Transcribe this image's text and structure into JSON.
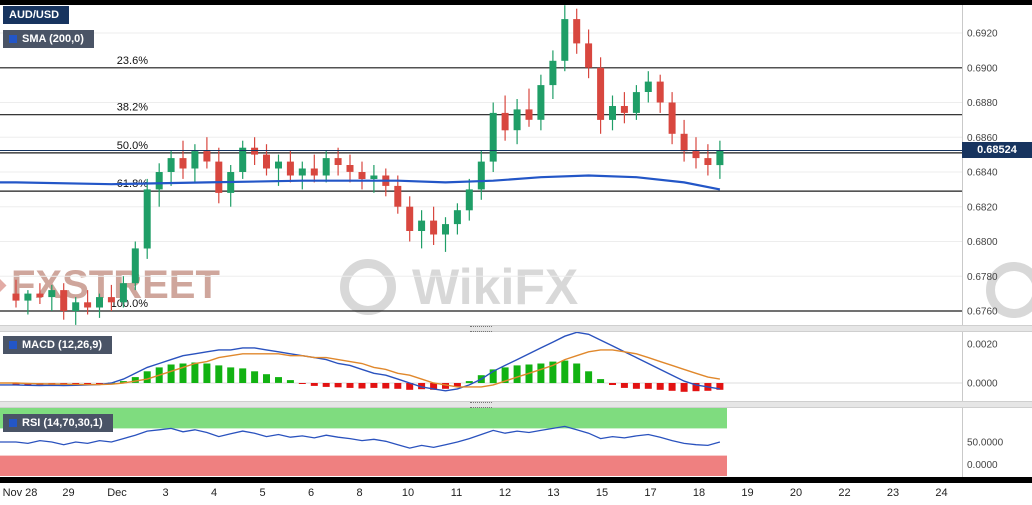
{
  "panels": {
    "price": {
      "symbol_label": "AUD/USD",
      "sma_label": "SMA (200,0)"
    },
    "macd": {
      "label": "MACD (12,26,9)",
      "axis": [
        "0.0020",
        "0.0000"
      ]
    },
    "rsi": {
      "label": "RSI (14,70,30,1)",
      "axis": [
        "50.0000",
        "0.0000"
      ]
    }
  },
  "price_axis": {
    "labels": [
      "0.6920",
      "0.6900",
      "0.6880",
      "0.6860",
      "0.6840",
      "0.6820",
      "0.6800",
      "0.6780",
      "0.6760"
    ],
    "current_price": "0.68524"
  },
  "x_axis": {
    "labels": [
      "Nov 28",
      "29",
      "Dec",
      "3",
      "4",
      "5",
      "6",
      "8",
      "10",
      "11",
      "12",
      "13",
      "15",
      "17",
      "18",
      "19",
      "20",
      "22",
      "23",
      "24"
    ]
  },
  "watermarks": {
    "left": "FXSTREET",
    "center": "WikiFX"
  },
  "colors": {
    "up": "#1f9e67",
    "down": "#d8473f",
    "sma": "#2356c7",
    "macd": "#2a52be",
    "signal": "#e0882c",
    "hist_up": "#12b212",
    "hist_down": "#e21212",
    "band_green": "#7fdc7f",
    "band_red": "#ef8080",
    "navy": "#17345f"
  },
  "chart_data": [
    {
      "type": "candlestick",
      "title": "AUD/USD",
      "x_labels": [
        "Nov 28",
        "29",
        "Dec",
        "3",
        "4",
        "5",
        "6",
        "8",
        "10",
        "11",
        "12",
        "13",
        "15",
        "17",
        "18",
        "19",
        "20",
        "22",
        "23",
        "24"
      ],
      "y_axis_ticks": [
        0.692,
        0.69,
        0.688,
        0.686,
        0.684,
        0.682,
        0.68,
        0.678,
        0.676
      ],
      "y_range": [
        0.6752,
        0.694
      ],
      "last_price": 0.68524,
      "fib_levels": [
        {
          "label": "23.6%",
          "price": 0.69
        },
        {
          "label": "38.2%",
          "price": 0.6873
        },
        {
          "label": "50.0%",
          "price": 0.6851
        },
        {
          "label": "61.8%",
          "price": 0.6829
        },
        {
          "label": "100.0%",
          "price": 0.676
        }
      ],
      "ohlc": [
        [
          0.677,
          0.6778,
          0.6762,
          0.6766
        ],
        [
          0.6766,
          0.6772,
          0.6758,
          0.677
        ],
        [
          0.677,
          0.6776,
          0.6764,
          0.6768
        ],
        [
          0.6768,
          0.6775,
          0.676,
          0.6772
        ],
        [
          0.6772,
          0.6776,
          0.6755,
          0.676
        ],
        [
          0.676,
          0.6768,
          0.6752,
          0.6765
        ],
        [
          0.6765,
          0.6772,
          0.6758,
          0.6762
        ],
        [
          0.6762,
          0.677,
          0.6756,
          0.6768
        ],
        [
          0.6768,
          0.6775,
          0.676,
          0.6765
        ],
        [
          0.6765,
          0.678,
          0.6762,
          0.6776
        ],
        [
          0.6776,
          0.68,
          0.6772,
          0.6796
        ],
        [
          0.6796,
          0.6836,
          0.679,
          0.683
        ],
        [
          0.683,
          0.6845,
          0.682,
          0.684
        ],
        [
          0.684,
          0.6852,
          0.6832,
          0.6848
        ],
        [
          0.6848,
          0.6858,
          0.6836,
          0.6842
        ],
        [
          0.6842,
          0.6856,
          0.6834,
          0.6852
        ],
        [
          0.6852,
          0.686,
          0.6842,
          0.6846
        ],
        [
          0.6846,
          0.6854,
          0.6822,
          0.6828
        ],
        [
          0.6828,
          0.6844,
          0.682,
          0.684
        ],
        [
          0.684,
          0.6858,
          0.6836,
          0.6854
        ],
        [
          0.6854,
          0.686,
          0.6844,
          0.685
        ],
        [
          0.685,
          0.6856,
          0.6838,
          0.6842
        ],
        [
          0.6842,
          0.685,
          0.6832,
          0.6846
        ],
        [
          0.6846,
          0.6852,
          0.6834,
          0.6838
        ],
        [
          0.6838,
          0.6846,
          0.683,
          0.6842
        ],
        [
          0.6842,
          0.685,
          0.6834,
          0.6838
        ],
        [
          0.6838,
          0.6852,
          0.6834,
          0.6848
        ],
        [
          0.6848,
          0.6854,
          0.6838,
          0.6844
        ],
        [
          0.6844,
          0.685,
          0.6834,
          0.684
        ],
        [
          0.684,
          0.6846,
          0.683,
          0.6836
        ],
        [
          0.6836,
          0.6844,
          0.6828,
          0.6838
        ],
        [
          0.6838,
          0.6842,
          0.6826,
          0.6832
        ],
        [
          0.6832,
          0.6838,
          0.6816,
          0.682
        ],
        [
          0.682,
          0.6826,
          0.68,
          0.6806
        ],
        [
          0.6806,
          0.6818,
          0.6796,
          0.6812
        ],
        [
          0.6812,
          0.682,
          0.6798,
          0.6804
        ],
        [
          0.6804,
          0.6814,
          0.6794,
          0.681
        ],
        [
          0.681,
          0.6822,
          0.6804,
          0.6818
        ],
        [
          0.6818,
          0.6836,
          0.6812,
          0.683
        ],
        [
          0.683,
          0.6852,
          0.6824,
          0.6846
        ],
        [
          0.6846,
          0.688,
          0.684,
          0.6874
        ],
        [
          0.6874,
          0.6884,
          0.6858,
          0.6864
        ],
        [
          0.6864,
          0.6882,
          0.6856,
          0.6876
        ],
        [
          0.6876,
          0.6888,
          0.6866,
          0.687
        ],
        [
          0.687,
          0.6896,
          0.6864,
          0.689
        ],
        [
          0.689,
          0.691,
          0.6882,
          0.6904
        ],
        [
          0.6904,
          0.6936,
          0.6898,
          0.6928
        ],
        [
          0.6928,
          0.6934,
          0.6908,
          0.6914
        ],
        [
          0.6914,
          0.6922,
          0.6894,
          0.69
        ],
        [
          0.69,
          0.6906,
          0.6862,
          0.687
        ],
        [
          0.687,
          0.6884,
          0.6864,
          0.6878
        ],
        [
          0.6878,
          0.6886,
          0.6868,
          0.6874
        ],
        [
          0.6874,
          0.689,
          0.687,
          0.6886
        ],
        [
          0.6886,
          0.6898,
          0.688,
          0.6892
        ],
        [
          0.6892,
          0.6896,
          0.6874,
          0.688
        ],
        [
          0.688,
          0.6886,
          0.6856,
          0.6862
        ],
        [
          0.6862,
          0.687,
          0.6846,
          0.6852
        ],
        [
          0.6852,
          0.686,
          0.6842,
          0.6848
        ],
        [
          0.6848,
          0.6856,
          0.6838,
          0.6844
        ],
        [
          0.6844,
          0.6858,
          0.6836,
          0.68524
        ]
      ],
      "overlays": [
        {
          "name": "SMA (200,0)",
          "points": [
            [
              0,
              0.6834
            ],
            [
              8,
              0.6833
            ],
            [
              16,
              0.6834
            ],
            [
              24,
              0.6835
            ],
            [
              32,
              0.6835
            ],
            [
              36,
              0.6834
            ],
            [
              40,
              0.6835
            ],
            [
              44,
              0.6837
            ],
            [
              48,
              0.6838
            ],
            [
              52,
              0.6837
            ],
            [
              56,
              0.6834
            ],
            [
              59,
              0.683
            ]
          ]
        }
      ]
    },
    {
      "type": "macd",
      "title": "MACD (12,26,9)",
      "y_axis_ticks": [
        0.002,
        0.0
      ],
      "histogram": [
        -8e-05,
        -0.0001,
        -0.00012,
        -0.0001,
        -0.00012,
        -0.0001,
        -8e-05,
        -6e-05,
        2e-05,
        0.0001,
        0.0003,
        0.0006,
        0.0008,
        0.00095,
        0.001,
        0.00105,
        0.001,
        0.0009,
        0.0008,
        0.00075,
        0.0006,
        0.00045,
        0.0003,
        0.00015,
        -5e-05,
        -0.00015,
        -0.0002,
        -0.00022,
        -0.00025,
        -0.00028,
        -0.00025,
        -0.00028,
        -0.0003,
        -0.00035,
        -0.00032,
        -0.00035,
        -0.0003,
        -0.0002,
        0.0001,
        0.0004,
        0.0007,
        0.0008,
        0.0009,
        0.00095,
        0.001,
        0.0011,
        0.00115,
        0.001,
        0.0006,
        0.0002,
        -0.0001,
        -0.00025,
        -0.0003,
        -0.0003,
        -0.00035,
        -0.0004,
        -0.00045,
        -0.00042,
        -0.0004,
        -0.00035
      ],
      "macd_line": [
        -0.0001,
        -0.00012,
        -0.00013,
        -0.00012,
        -0.00013,
        -0.00012,
        -0.0001,
        -8e-05,
        0,
        0.0002,
        0.0005,
        0.0008,
        0.001,
        0.0012,
        0.0014,
        0.0015,
        0.0016,
        0.0017,
        0.0017,
        0.0018,
        0.0018,
        0.0017,
        0.0016,
        0.0015,
        0.0014,
        0.0013,
        0.0012,
        0.001,
        0.0009,
        0.0007,
        0.0005,
        0.0004,
        0.0002,
        0,
        -0.0002,
        -0.0003,
        -0.0004,
        -0.0003,
        -0.0001,
        0.0002,
        0.0006,
        0.0009,
        0.0012,
        0.0015,
        0.0018,
        0.0021,
        0.0024,
        0.0026,
        0.0025,
        0.0022,
        0.0019,
        0.0016,
        0.0013,
        0.001,
        0.0007,
        0.0004,
        0.0001,
        -0.0001,
        -0.0002,
        -0.0003
      ],
      "signal_line": [
        0,
        -2e-05,
        -4e-05,
        -5e-05,
        -6e-05,
        -7e-05,
        -8e-05,
        -8e-05,
        -6e-05,
        0,
        0.0001,
        0.0002,
        0.0004,
        0.0006,
        0.0008,
        0.001,
        0.0011,
        0.0013,
        0.0014,
        0.0015,
        0.0015,
        0.0015,
        0.0015,
        0.0014,
        0.0014,
        0.0013,
        0.0013,
        0.0012,
        0.0011,
        0.001,
        0.0008,
        0.0007,
        0.0005,
        0.0004,
        0.0002,
        0,
        -0.0001,
        -0.0002,
        -0.0002,
        -0.0002,
        -0.0001,
        0.0001,
        0.0003,
        0.0005,
        0.0007,
        0.0009,
        0.0012,
        0.0014,
        0.0016,
        0.0017,
        0.0017,
        0.0016,
        0.0015,
        0.0013,
        0.0011,
        0.0009,
        0.0007,
        0.0005,
        0.0003,
        0.0002
      ]
    },
    {
      "type": "rsi",
      "title": "RSI (14,70,30,1)",
      "y_axis_ticks": [
        50,
        0
      ],
      "overbought": 70,
      "oversold": 30,
      "values": [
        50,
        48,
        52,
        50,
        46,
        50,
        48,
        52,
        50,
        55,
        60,
        66,
        68,
        70,
        65,
        68,
        64,
        58,
        62,
        66,
        63,
        58,
        61,
        57,
        59,
        56,
        60,
        57,
        55,
        52,
        54,
        51,
        46,
        41,
        45,
        42,
        46,
        50,
        55,
        61,
        67,
        63,
        66,
        64,
        67,
        70,
        73,
        68,
        63,
        55,
        58,
        56,
        59,
        61,
        57,
        52,
        48,
        46,
        45,
        50
      ]
    }
  ]
}
